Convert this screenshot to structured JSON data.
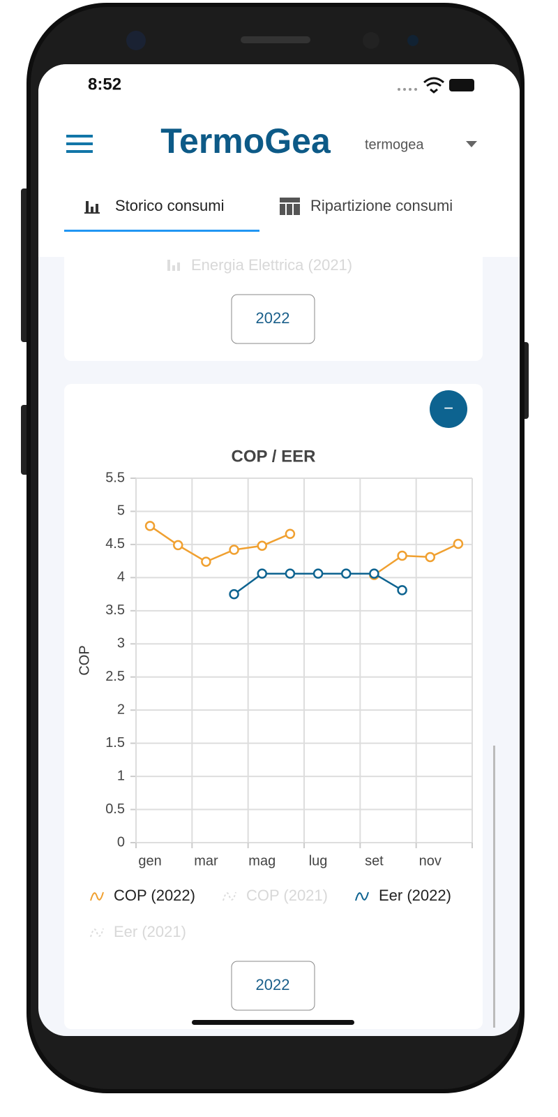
{
  "status": {
    "time": "8:52"
  },
  "header": {
    "logo": "TermoGea",
    "user": "termogea"
  },
  "tabs": [
    "Storico consumi",
    "Ripartizione consumi"
  ],
  "card1": {
    "legend": "Energia Elettrica (2021)",
    "button": "2022"
  },
  "card2": {
    "collapse": "−",
    "button": "2022"
  },
  "chart_data": {
    "type": "line",
    "title": "COP / EER",
    "y_label": "COP",
    "categories": [
      "gen",
      null,
      "mar",
      null,
      "mag",
      null,
      "lug",
      null,
      "set",
      null,
      "nov",
      null
    ],
    "series": [
      {
        "name": "COP (2022)",
        "color": "#f0a030",
        "values": [
          4.78,
          4.49,
          4.24,
          4.42,
          4.48,
          4.66,
          null,
          null,
          4.04,
          4.33,
          4.31,
          4.51
        ]
      },
      {
        "name": "COP (2021)",
        "color": "#cccccc",
        "hidden": true,
        "values": [
          null,
          null,
          null,
          null,
          null,
          null,
          null,
          null,
          null,
          null,
          null,
          null
        ]
      },
      {
        "name": "Eer (2022)",
        "color": "#0d6390",
        "values": [
          null,
          null,
          null,
          3.75,
          4.06,
          4.06,
          4.06,
          4.06,
          4.06,
          3.81,
          null,
          null
        ]
      },
      {
        "name": "Eer (2021)",
        "color": "#cccccc",
        "hidden": true,
        "values": [
          null,
          null,
          null,
          null,
          null,
          null,
          null,
          null,
          null,
          null,
          null,
          null
        ]
      }
    ],
    "ylim": [
      0,
      5.5
    ],
    "yticks": [
      0,
      0.5,
      1,
      1.5,
      2,
      2.5,
      3,
      3.5,
      4,
      4.5,
      5,
      5.5
    ],
    "grid": true
  }
}
